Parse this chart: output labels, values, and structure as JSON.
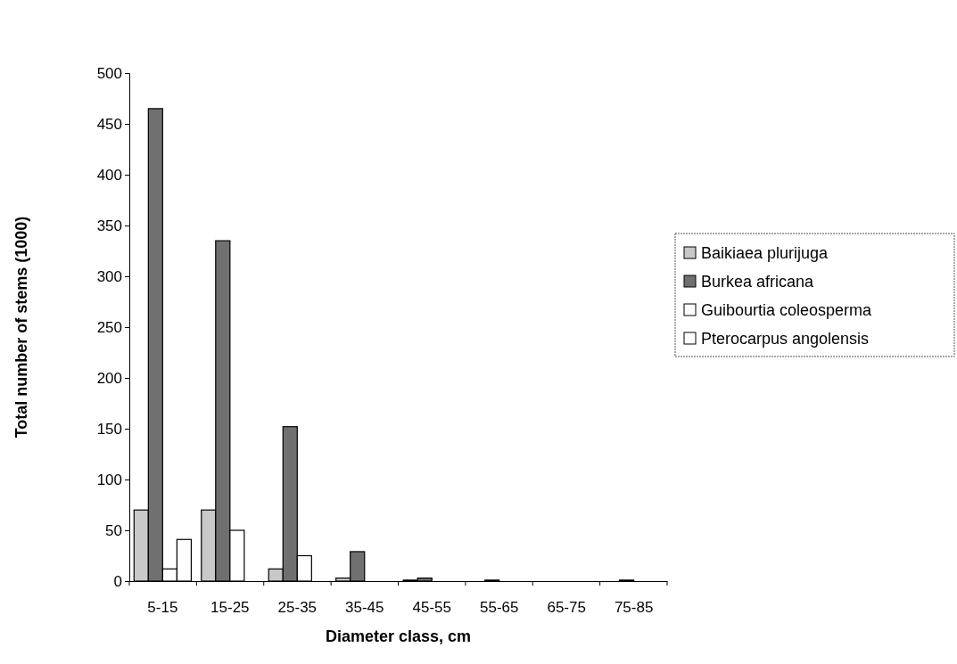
{
  "chart_data": {
    "type": "bar",
    "xlabel": "Diameter class, cm",
    "ylabel": "Total number of stems (1000)",
    "categories": [
      "5-15",
      "15-25",
      "25-35",
      "35-45",
      "45-55",
      "55-65",
      "65-75",
      "75-85"
    ],
    "series": [
      {
        "name": "Baikiaea plurijuga",
        "color": "#c8c8c8",
        "values": [
          70,
          70,
          12,
          3,
          1,
          0,
          0,
          0
        ]
      },
      {
        "name": "Burkea africana",
        "color": "#707070",
        "values": [
          465,
          335,
          152,
          29,
          3,
          1,
          0,
          1
        ]
      },
      {
        "name": "Guibourtia coleosperma",
        "color": "#ffffff",
        "values": [
          12,
          50,
          25,
          0,
          0,
          0,
          0,
          0
        ]
      },
      {
        "name": "Pterocarpus angolensis",
        "color": "#ffffff",
        "values": [
          41,
          0,
          0,
          0,
          0,
          0,
          0,
          0
        ]
      }
    ],
    "ylim": [
      0,
      500
    ],
    "yticks": [
      0,
      50,
      100,
      150,
      200,
      250,
      300,
      350,
      400,
      450,
      500
    ],
    "grid": false,
    "legend": "right"
  }
}
